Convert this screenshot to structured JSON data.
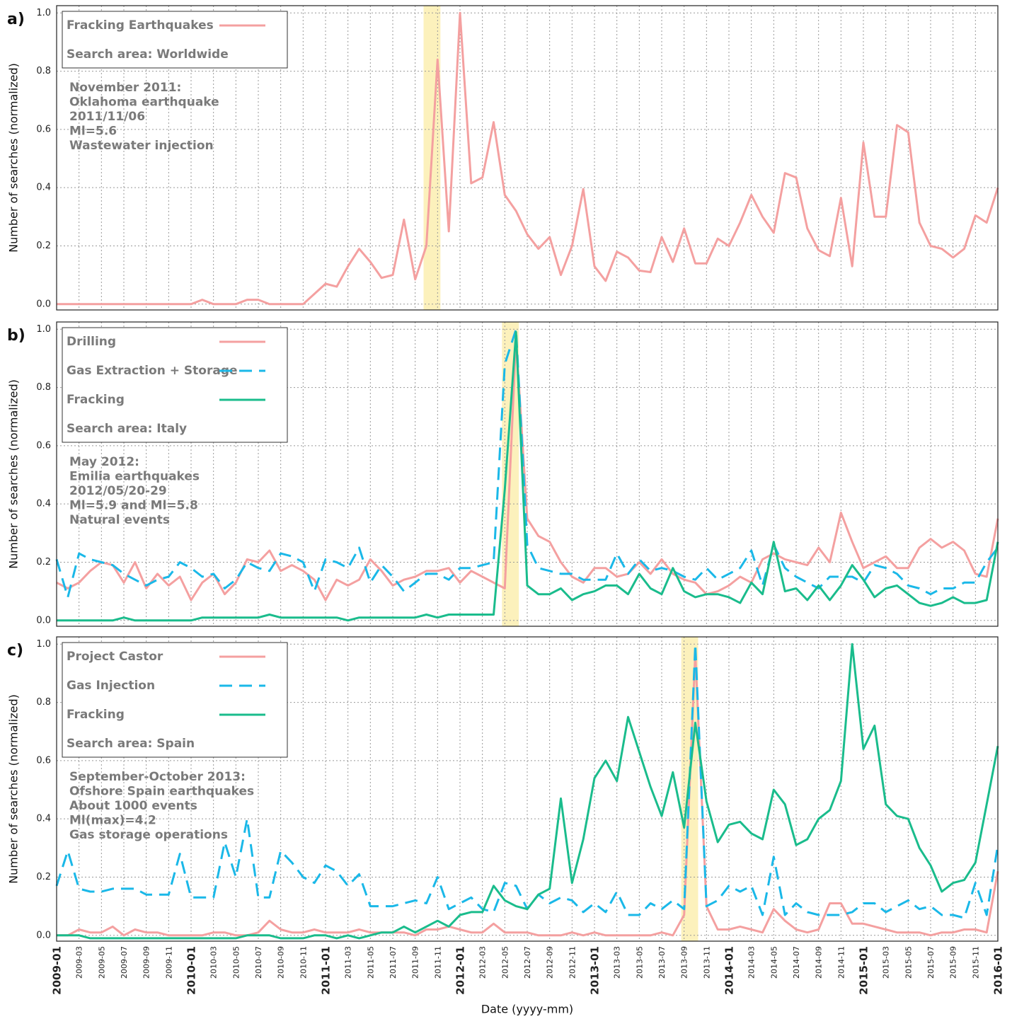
{
  "chart_data": [
    {
      "type": "line",
      "panel_label": "a)",
      "y_label": "Number of searches (normalized)",
      "ylim": [
        -0.02,
        1.025
      ],
      "yticks": [
        {
          "value": 0,
          "label": "0.0"
        },
        0.2,
        0.4,
        0.6,
        0.8,
        {
          "value": 1,
          "label": "1.0"
        }
      ],
      "grid": true,
      "highlight": [
        "2011-10",
        "2011-11"
      ],
      "highlight_color": "#fbeeb0",
      "legend_location": "upper left",
      "search_area": "Search area: Worldwide",
      "annotation": [
        "November 2011:",
        "Oklahoma earthquake",
        "2011/11/06",
        "Ml=5.6",
        "Wastewater injection"
      ],
      "series": [
        {
          "name": "Fracking Earthquakes",
          "color": "#f4a0a0",
          "dashed": false,
          "values": [
            0,
            0,
            0,
            0,
            0,
            0,
            0,
            0,
            0,
            0,
            0,
            0,
            0,
            0.015,
            0,
            0,
            0,
            0.015,
            0.015,
            0,
            0,
            0,
            0,
            0.035,
            0.07,
            0.06,
            0.13,
            0.19,
            0.145,
            0.09,
            0.1,
            0.29,
            0.085,
            0.2,
            0.84,
            0.25,
            1.0,
            0.415,
            0.435,
            0.625,
            0.375,
            0.32,
            0.24,
            0.19,
            0.23,
            0.1,
            0.2,
            0.395,
            0.13,
            0.08,
            0.18,
            0.16,
            0.115,
            0.11,
            0.23,
            0.145,
            0.26,
            0.14,
            0.14,
            0.225,
            0.2,
            0.28,
            0.375,
            0.3,
            0.245,
            0.45,
            0.435,
            0.26,
            0.185,
            0.165,
            0.365,
            0.13,
            0.555,
            0.3,
            0.3,
            0.615,
            0.59,
            0.28,
            0.2,
            0.19,
            0.16,
            0.19,
            0.305,
            0.28,
            0.4
          ]
        }
      ]
    },
    {
      "type": "line",
      "panel_label": "b)",
      "y_label": "Number of searches (normalized)",
      "ylim": [
        -0.02,
        1.025
      ],
      "yticks": [
        {
          "value": 0,
          "label": "0.0"
        },
        0.2,
        0.4,
        0.6,
        0.8,
        {
          "value": 1,
          "label": "1.0"
        }
      ],
      "grid": true,
      "highlight": [
        "2012-05",
        "2012-06"
      ],
      "highlight_color": "#fbeeb0",
      "legend_location": "upper left",
      "search_area": "Search area: Italy",
      "annotation": [
        "May 2012:",
        "Emilia earthquakes",
        "2012/05/20-29",
        "Ml=5.9 and Ml=5.8",
        "Natural events"
      ],
      "series": [
        {
          "name": "Drilling",
          "color": "#f4a0a0",
          "dashed": false,
          "values": [
            0.13,
            0.11,
            0.13,
            0.17,
            0.2,
            0.19,
            0.13,
            0.2,
            0.11,
            0.16,
            0.12,
            0.15,
            0.07,
            0.13,
            0.16,
            0.09,
            0.13,
            0.21,
            0.2,
            0.24,
            0.17,
            0.19,
            0.17,
            0.14,
            0.07,
            0.14,
            0.12,
            0.14,
            0.21,
            0.17,
            0.12,
            0.14,
            0.15,
            0.17,
            0.17,
            0.18,
            0.13,
            0.17,
            0.15,
            0.13,
            0.11,
            0.97,
            0.35,
            0.29,
            0.27,
            0.2,
            0.15,
            0.13,
            0.18,
            0.18,
            0.15,
            0.16,
            0.2,
            0.16,
            0.21,
            0.16,
            0.14,
            0.13,
            0.09,
            0.1,
            0.12,
            0.15,
            0.13,
            0.21,
            0.23,
            0.21,
            0.2,
            0.19,
            0.25,
            0.2,
            0.37,
            0.27,
            0.18,
            0.2,
            0.22,
            0.18,
            0.18,
            0.25,
            0.28,
            0.25,
            0.27,
            0.24,
            0.16,
            0.15,
            0.35
          ]
        },
        {
          "name": "Gas Extraction + Storage",
          "color": "#1ab8e8",
          "dashed": true,
          "values": [
            0.21,
            0.08,
            0.23,
            0.21,
            0.2,
            0.19,
            0.16,
            0.14,
            0.12,
            0.14,
            0.15,
            0.2,
            0.18,
            0.15,
            0.16,
            0.11,
            0.14,
            0.2,
            0.18,
            0.17,
            0.23,
            0.22,
            0.2,
            0.1,
            0.21,
            0.2,
            0.18,
            0.25,
            0.13,
            0.19,
            0.15,
            0.1,
            0.13,
            0.16,
            0.16,
            0.14,
            0.18,
            0.18,
            0.19,
            0.2,
            0.88,
            1.0,
            0.26,
            0.18,
            0.17,
            0.16,
            0.16,
            0.14,
            0.14,
            0.14,
            0.23,
            0.16,
            0.21,
            0.17,
            0.18,
            0.17,
            0.15,
            0.14,
            0.18,
            0.14,
            0.16,
            0.18,
            0.24,
            0.12,
            0.26,
            0.18,
            0.15,
            0.13,
            0.11,
            0.15,
            0.15,
            0.15,
            0.13,
            0.19,
            0.18,
            0.16,
            0.12,
            0.11,
            0.09,
            0.11,
            0.11,
            0.13,
            0.13,
            0.2,
            0.25
          ]
        },
        {
          "name": "Fracking",
          "color": "#1abc8c",
          "dashed": false,
          "values": [
            0,
            0,
            0,
            0,
            0,
            0,
            0.01,
            0,
            0,
            0,
            0,
            0,
            0,
            0.01,
            0.01,
            0.01,
            0.01,
            0.01,
            0.01,
            0.02,
            0.01,
            0.01,
            0.01,
            0.01,
            0.01,
            0.01,
            0,
            0.01,
            0.01,
            0.01,
            0.01,
            0.01,
            0.01,
            0.02,
            0.01,
            0.02,
            0.02,
            0.02,
            0.02,
            0.02,
            0.45,
            0.99,
            0.12,
            0.09,
            0.09,
            0.11,
            0.07,
            0.09,
            0.1,
            0.12,
            0.12,
            0.09,
            0.16,
            0.11,
            0.09,
            0.18,
            0.1,
            0.08,
            0.09,
            0.09,
            0.08,
            0.06,
            0.13,
            0.09,
            0.27,
            0.1,
            0.11,
            0.07,
            0.12,
            0.07,
            0.12,
            0.19,
            0.14,
            0.08,
            0.11,
            0.12,
            0.09,
            0.06,
            0.05,
            0.06,
            0.08,
            0.06,
            0.06,
            0.07,
            0.27
          ]
        }
      ]
    },
    {
      "type": "line",
      "panel_label": "c)",
      "y_label": "Number of searches (normalized)",
      "x_label": "Date (yyyy-mm)",
      "categories": [
        "2009-01",
        null,
        "2009-03",
        null,
        "2009-05",
        null,
        "2009-07",
        null,
        "2009-09",
        null,
        "2009-11",
        null,
        "2010-01",
        null,
        "2010-03",
        null,
        "2010-05",
        null,
        "2010-07",
        null,
        "2010-09",
        null,
        "2010-11",
        null,
        "2011-01",
        null,
        "2011-03",
        null,
        "2011-05",
        null,
        "2011-07",
        null,
        "2011-09",
        null,
        "2011-11",
        null,
        "2012-01",
        null,
        "2012-03",
        null,
        "2012-05",
        null,
        "2012-07",
        null,
        "2012-09",
        null,
        "2012-11",
        null,
        "2013-01",
        null,
        "2013-03",
        null,
        "2013-05",
        null,
        "2013-07",
        null,
        "2013-09",
        null,
        "2013-11",
        null,
        "2014-01",
        null,
        "2014-03",
        null,
        "2014-05",
        null,
        "2014-07",
        null,
        "2014-09",
        null,
        "2014-11",
        null,
        "2015-01",
        null,
        "2015-03",
        null,
        "2015-05",
        null,
        "2015-07",
        null,
        "2015-09",
        null,
        "2015-11",
        null,
        "2016-01"
      ],
      "ylim": [
        -0.02,
        1.025
      ],
      "yticks": [
        {
          "value": 0,
          "label": "0.0"
        },
        0.2,
        0.4,
        0.6,
        0.8,
        {
          "value": 1,
          "label": "1.0"
        }
      ],
      "grid": true,
      "highlight": [
        "2013-09",
        "2013-10"
      ],
      "highlight_color": "#fbeeb0",
      "legend_location": "upper left",
      "search_area": "Search area: Spain",
      "annotation": [
        "September-October 2013:",
        "Ofshore Spain earthquakes",
        "About 1000 events",
        "Ml(max)=4.2",
        "Gas storage operations"
      ],
      "series": [
        {
          "name": "Project Castor",
          "color": "#f4a0a0",
          "dashed": false,
          "values": [
            0,
            0,
            0.02,
            0.01,
            0.01,
            0.03,
            0,
            0.02,
            0.01,
            0.01,
            0,
            0,
            0,
            0,
            0.01,
            0.01,
            0,
            0,
            0.01,
            0.05,
            0.02,
            0.01,
            0.01,
            0.02,
            0.01,
            0.01,
            0.01,
            0.02,
            0.01,
            0.01,
            0.01,
            0.01,
            0,
            0.02,
            0.02,
            0.03,
            0.02,
            0.01,
            0.01,
            0.04,
            0.01,
            0.01,
            0.01,
            0,
            0,
            0,
            0.01,
            0,
            0.01,
            0,
            0,
            0,
            0,
            0,
            0.01,
            0,
            0.07,
            0.97,
            0.1,
            0.02,
            0.02,
            0.03,
            0.02,
            0.01,
            0.09,
            0.05,
            0.02,
            0.01,
            0.02,
            0.11,
            0.11,
            0.04,
            0.04,
            0.03,
            0.02,
            0.01,
            0.01,
            0.01,
            0,
            0.01,
            0.01,
            0.02,
            0.02,
            0.01,
            0.22
          ]
        },
        {
          "name": "Gas Injection",
          "color": "#1ab8e8",
          "dashed": true,
          "values": [
            0.17,
            0.29,
            0.16,
            0.15,
            0.15,
            0.16,
            0.16,
            0.16,
            0.14,
            0.14,
            0.14,
            0.28,
            0.13,
            0.13,
            0.13,
            0.32,
            0.2,
            0.4,
            0.13,
            0.13,
            0.29,
            0.25,
            0.2,
            0.18,
            0.24,
            0.22,
            0.17,
            0.21,
            0.1,
            0.1,
            0.1,
            0.11,
            0.12,
            0.11,
            0.2,
            0.09,
            0.11,
            0.13,
            0.09,
            0.08,
            0.18,
            0.17,
            0.09,
            0.14,
            0.11,
            0.13,
            0.12,
            0.08,
            0.11,
            0.08,
            0.15,
            0.07,
            0.07,
            0.11,
            0.09,
            0.12,
            0.09,
            1.0,
            0.1,
            0.12,
            0.17,
            0.15,
            0.17,
            0.07,
            0.27,
            0.07,
            0.11,
            0.08,
            0.07,
            0.07,
            0.07,
            0.08,
            0.11,
            0.11,
            0.08,
            0.1,
            0.12,
            0.09,
            0.1,
            0.07,
            0.07,
            0.06,
            0.18,
            0.07,
            0.31
          ]
        },
        {
          "name": "Fracking",
          "color": "#1abc8c",
          "dashed": false,
          "values": [
            0,
            0,
            0,
            -0.01,
            -0.01,
            -0.01,
            -0.01,
            -0.01,
            -0.01,
            -0.01,
            -0.01,
            -0.01,
            -0.01,
            -0.01,
            -0.01,
            -0.01,
            -0.01,
            0,
            0,
            0,
            -0.01,
            -0.01,
            -0.01,
            0,
            0,
            -0.01,
            0,
            -0.01,
            0,
            0.01,
            0.01,
            0.03,
            0.01,
            0.03,
            0.05,
            0.03,
            0.07,
            0.08,
            0.08,
            0.17,
            0.12,
            0.1,
            0.09,
            0.14,
            0.16,
            0.47,
            0.18,
            0.33,
            0.54,
            0.6,
            0.53,
            0.75,
            0.63,
            0.51,
            0.41,
            0.56,
            0.37,
            0.73,
            0.46,
            0.32,
            0.38,
            0.39,
            0.35,
            0.33,
            0.5,
            0.45,
            0.31,
            0.33,
            0.4,
            0.43,
            0.53,
            1.0,
            0.64,
            0.72,
            0.45,
            0.41,
            0.4,
            0.3,
            0.24,
            0.15,
            0.18,
            0.19,
            0.25,
            0.45,
            0.65
          ]
        }
      ]
    }
  ]
}
